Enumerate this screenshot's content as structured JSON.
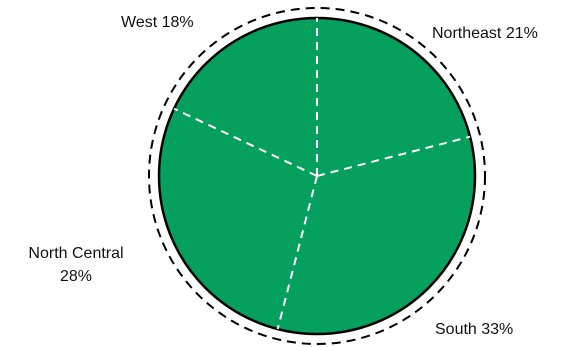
{
  "chart_data": {
    "type": "pie",
    "title": "",
    "slices": [
      {
        "label": "Northeast",
        "value": 21
      },
      {
        "label": "South",
        "value": 33
      },
      {
        "label": "North Central",
        "value": 28
      },
      {
        "label": "West",
        "value": 18
      }
    ],
    "slice_labels": [
      {
        "lines": [
          "Northeast 21%"
        ]
      },
      {
        "lines": [
          "South 33%"
        ]
      },
      {
        "lines": [
          "North Central",
          "28%"
        ]
      },
      {
        "lines": [
          "West 18%"
        ]
      }
    ],
    "fill_color": "#06a05e",
    "outline_color": "#000000",
    "divider_color": "#ffffff"
  }
}
